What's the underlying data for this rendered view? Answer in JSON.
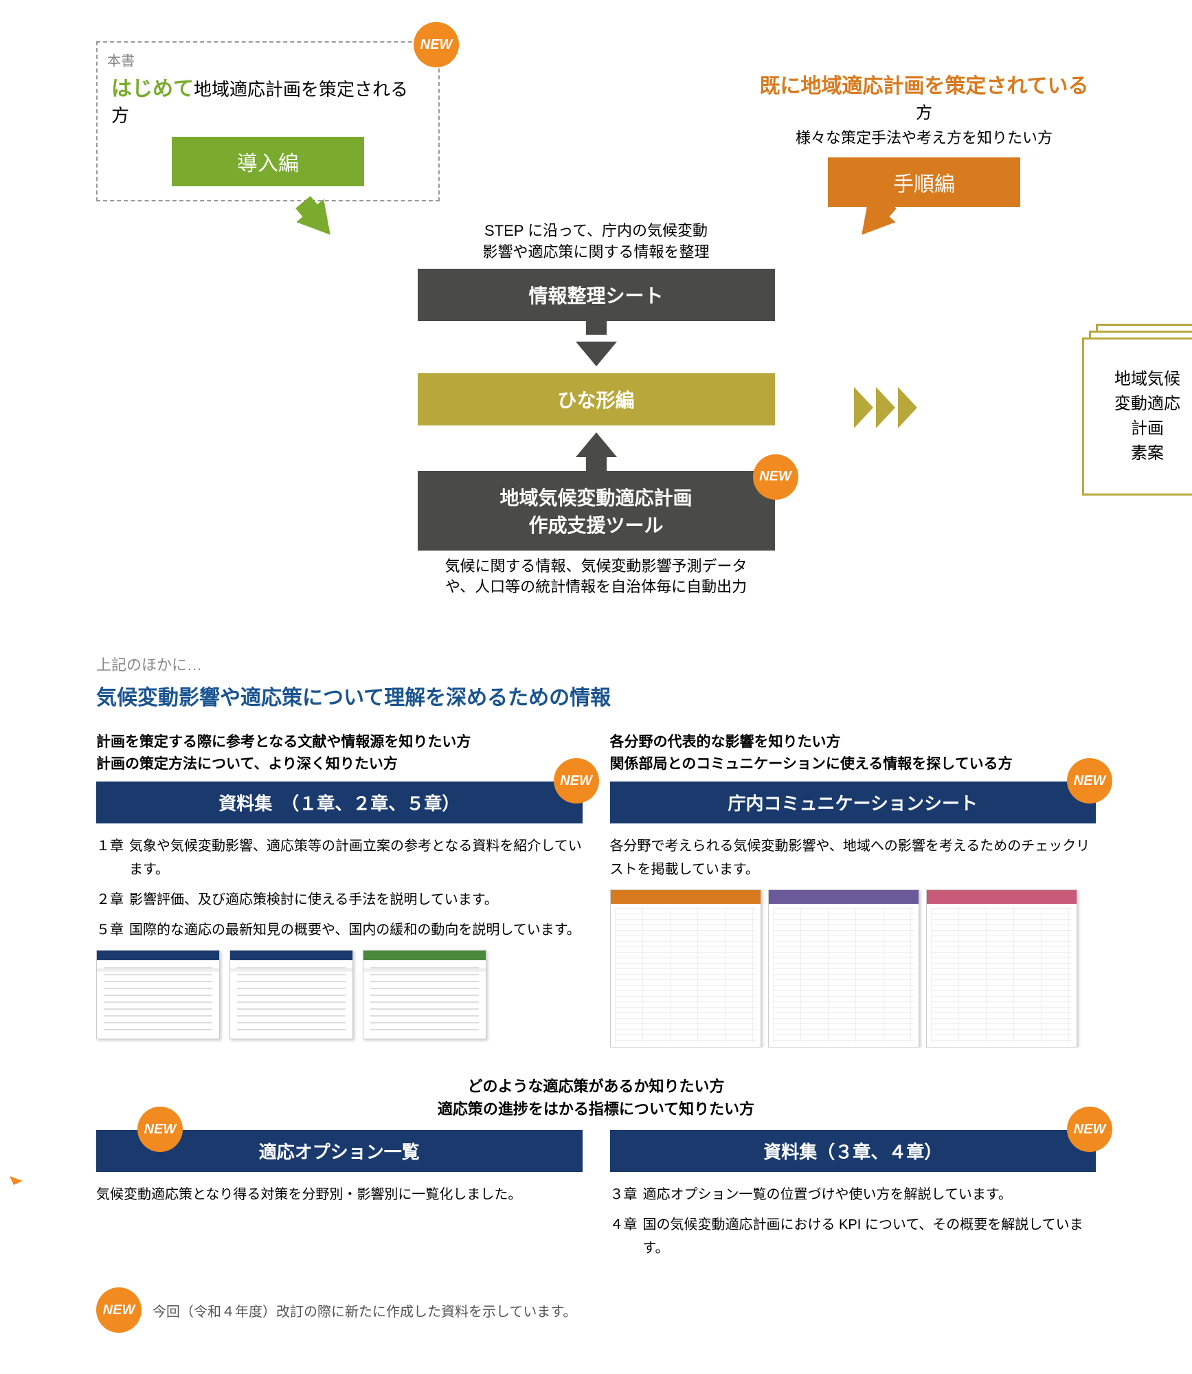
{
  "colors": {
    "green": "#7aab2e",
    "orange": "#d87a1e",
    "dark": "#4a4a48",
    "olive": "#b8a83c",
    "navy": "#1a3a6e",
    "blue_text": "#1a5490",
    "badge": "#f18a1f",
    "gray_text": "#888888"
  },
  "badge": {
    "label": "NEW"
  },
  "top_left": {
    "corner_label": "本書",
    "highlight": "はじめて",
    "rest": "地域適応計画を策定される方",
    "button": "導入編"
  },
  "top_right": {
    "highlight": "既に地域適応計画を策定されている",
    "suffix": "方",
    "sub": "様々な策定手法や考え方を知りたい方",
    "button": "手順編"
  },
  "flow": {
    "intro_text": "STEP に沿って、庁内の気候変動\n影響や適応策に関する情報を整理",
    "box1": "情報整理シート",
    "box2": "ひな形編",
    "box3_line1": "地域気候変動適応計画",
    "box3_line2": "作成支援ツール",
    "bottom_text": "気候に関する情報、気候変動影響予測データ\nや、人口等の統計情報を自治体毎に自動出力",
    "doc_text": "地域気候\n変動適応\n計画\n素案"
  },
  "section": {
    "pre": "上記のほかに…",
    "title": "気候変動影響や適応策について理解を深めるための情報"
  },
  "left_col": {
    "lead": "計画を策定する際に参考となる文献や情報源を知りたい方\n計画の策定方法について、より深く知りたい方",
    "bar": "資料集　（１章、２章、５章）",
    "items": [
      {
        "ch": "１章",
        "text": "気象や気候変動影響、適応策等の計画立案の参考となる資料を紹介しています。"
      },
      {
        "ch": "２章",
        "text": "影響評価、及び適応策検討に使える手法を説明しています。"
      },
      {
        "ch": "５章",
        "text": "国際的な適応の最新知見の概要や、国内の緩和の動向を説明しています。"
      }
    ]
  },
  "right_col": {
    "lead": "各分野の代表的な影響を知りたい方\n関係部局とのコミュニケーションに使える情報を探している方",
    "bar": "庁内コミュニケーションシート",
    "body": "各分野で考えられる気候変動影響や、地域への影響を考えるためのチェックリストを掲載しています。"
  },
  "bottom": {
    "lead": "どのような適応策があるか知りたい方\n適応策の進捗をはかる指標について知りたい方",
    "left_bar": "適応オプション一覧",
    "left_body": "気候変動適応策となり得る対策を分野別・影響別に一覧化しました。",
    "right_bar": "資料集（３章、４章）",
    "right_items": [
      {
        "ch": "３章",
        "text": "適応オプション一覧の位置づけや使い方を解説しています。"
      },
      {
        "ch": "４章",
        "text": "国の気候変動適応計画における KPI について、その概要を解説しています。"
      }
    ]
  },
  "footer": "今回（令和４年度）改訂の際に新たに作成した資料を示しています。"
}
